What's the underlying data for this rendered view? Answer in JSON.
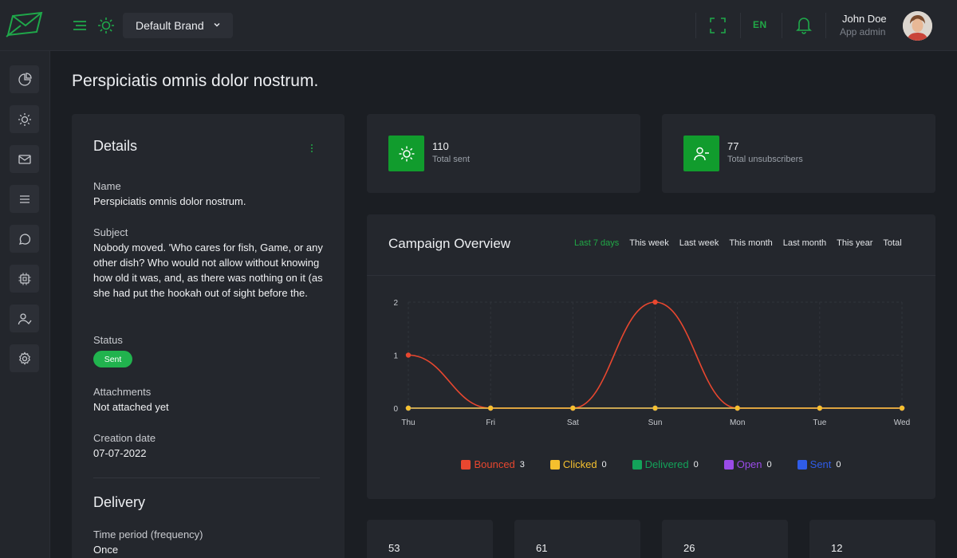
{
  "topbar": {
    "brand_select": "Default Brand",
    "language": "EN",
    "user_name": "John Doe",
    "user_role": "App admin"
  },
  "sidebar": {
    "items": [
      "dashboard",
      "templates",
      "campaigns",
      "lists",
      "chat",
      "integrations",
      "subscribers",
      "settings"
    ]
  },
  "page": {
    "title": "Perspiciatis omnis dolor nostrum."
  },
  "details": {
    "title": "Details",
    "name_label": "Name",
    "name_value": "Perspiciatis omnis dolor nostrum.",
    "subject_label": "Subject",
    "subject_value": "Nobody moved. 'Who cares for fish, Game, or any other dish? Who would not allow without knowing how old it was, and, as there was nothing on it (as she had put the hookah out of sight before the.",
    "status_label": "Status",
    "status_value": "Sent",
    "attachments_label": "Attachments",
    "attachments_value": "Not attached yet",
    "creation_label": "Creation date",
    "creation_value": "07-07-2022",
    "delivery_title": "Delivery",
    "period_label": "Time period (frequency)",
    "period_value": "Once"
  },
  "stats": {
    "total_sent_value": "110",
    "total_sent_label": "Total sent",
    "unsubscribers_value": "77",
    "unsubscribers_label": "Total unsubscribers"
  },
  "overview": {
    "title": "Campaign Overview",
    "tabs": [
      "Last 7 days",
      "This week",
      "Last week",
      "This month",
      "Last month",
      "This year",
      "Total"
    ],
    "active_tab": "Last 7 days"
  },
  "chart_data": {
    "type": "line",
    "categories": [
      "Thu",
      "Fri",
      "Sat",
      "Sun",
      "Mon",
      "Tue",
      "Wed"
    ],
    "ylim": [
      0,
      2
    ],
    "yticks": [
      0,
      1,
      2
    ],
    "grid": true,
    "legend_position": "bottom",
    "series": [
      {
        "name": "Bounced",
        "total": 3,
        "color": "#e8472f",
        "values": [
          1,
          0,
          0,
          2,
          0,
          0,
          0
        ]
      },
      {
        "name": "Clicked",
        "total": 0,
        "color": "#f5c02e",
        "values": [
          0,
          0,
          0,
          0,
          0,
          0,
          0
        ]
      },
      {
        "name": "Delivered",
        "total": 0,
        "color": "#13a35a",
        "values": [
          0,
          0,
          0,
          0,
          0,
          0,
          0
        ]
      },
      {
        "name": "Open",
        "total": 0,
        "color": "#9a4be8",
        "values": [
          0,
          0,
          0,
          0,
          0,
          0,
          0
        ]
      },
      {
        "name": "Sent",
        "total": 0,
        "color": "#2f5ce8",
        "values": [
          0,
          0,
          0,
          0,
          0,
          0,
          0
        ]
      }
    ]
  },
  "bottom_stats": [
    "53",
    "61",
    "26",
    "12"
  ]
}
